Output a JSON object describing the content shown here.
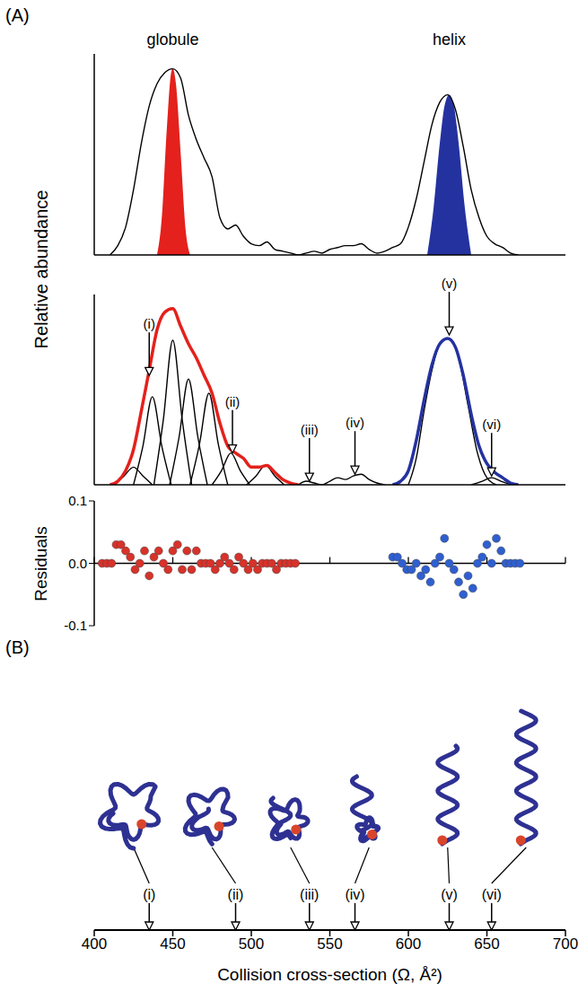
{
  "chart_data": [
    {
      "type": "line",
      "panel": "(A)",
      "ylabel": "Relative abundance",
      "grid": false,
      "tick_labels": false,
      "xlim": [
        400,
        700
      ],
      "xticks": [
        400,
        450,
        500,
        550,
        600,
        650,
        700
      ],
      "ylim": [
        0,
        1.08
      ],
      "annotations": [
        {
          "text": "globule",
          "x": 450
        },
        {
          "text": "helix",
          "x": 626
        }
      ],
      "series": [
        {
          "type": "area",
          "color": "#e4211c",
          "x": [
            440,
            443,
            446,
            449,
            450,
            452,
            455,
            458,
            461
          ],
          "values": [
            0,
            0.2,
            0.65,
            0.98,
            1.0,
            0.92,
            0.55,
            0.15,
            0
          ]
        },
        {
          "type": "area",
          "color": "#2432a0",
          "x": [
            612,
            616,
            620,
            623,
            626,
            629,
            632,
            636,
            640
          ],
          "values": [
            0,
            0.25,
            0.6,
            0.8,
            0.86,
            0.8,
            0.6,
            0.25,
            0
          ]
        },
        {
          "type": "line",
          "color": "#000000",
          "x": [
            410,
            415,
            420,
            425,
            430,
            435,
            440,
            445,
            450,
            455,
            460,
            465,
            470,
            475,
            480,
            485,
            490,
            495,
            500,
            505,
            510,
            515,
            520,
            525,
            530,
            535,
            540,
            545,
            550,
            555,
            560,
            565,
            570,
            575,
            580,
            585,
            590,
            595,
            600,
            605,
            610,
            615,
            620,
            625,
            630,
            635,
            640,
            645,
            650,
            655,
            660,
            665,
            670
          ],
          "values": [
            0,
            0.05,
            0.15,
            0.35,
            0.6,
            0.8,
            0.92,
            0.98,
            1.0,
            0.95,
            0.75,
            0.62,
            0.52,
            0.42,
            0.2,
            0.14,
            0.16,
            0.1,
            0.06,
            0.05,
            0.07,
            0.03,
            0.02,
            0.01,
            0,
            0.01,
            0.02,
            0.01,
            0.03,
            0.04,
            0.05,
            0.05,
            0.06,
            0.03,
            0.01,
            0.02,
            0.04,
            0.06,
            0.15,
            0.3,
            0.5,
            0.7,
            0.82,
            0.86,
            0.78,
            0.58,
            0.35,
            0.2,
            0.1,
            0.06,
            0.04,
            0.01,
            0
          ]
        }
      ]
    },
    {
      "type": "line",
      "grid": false,
      "tick_labels": false,
      "xlim": [
        400,
        700
      ],
      "xticks": [
        400,
        450,
        500,
        550,
        600,
        650,
        700
      ],
      "ylim": [
        0,
        1.08
      ],
      "annotations": [
        {
          "text": "(i)",
          "x": 435,
          "y": 0.62
        },
        {
          "text": "(ii)",
          "x": 488,
          "y": 0.18
        },
        {
          "text": "(iii)",
          "x": 537,
          "y": 0.02
        },
        {
          "text": "(iv)",
          "x": 566,
          "y": 0.06
        },
        {
          "text": "(v)",
          "x": 626,
          "y": 0.85
        },
        {
          "text": "(vi)",
          "x": 653,
          "y": 0.05
        }
      ],
      "series": [
        {
          "type": "line",
          "color": "#000000",
          "x": [
            413,
            419,
            425,
            431,
            437
          ],
          "values": [
            0,
            0.05,
            0.1,
            0.05,
            0
          ]
        },
        {
          "type": "line",
          "color": "#000000",
          "x": [
            425,
            431,
            437,
            443,
            449
          ],
          "values": [
            0,
            0.22,
            0.5,
            0.22,
            0
          ]
        },
        {
          "type": "line",
          "color": "#000000",
          "x": [
            438,
            444,
            450,
            456,
            462
          ],
          "values": [
            0,
            0.37,
            0.82,
            0.37,
            0
          ]
        },
        {
          "type": "line",
          "color": "#000000",
          "x": [
            448,
            454,
            460,
            466,
            472
          ],
          "values": [
            0,
            0.27,
            0.6,
            0.27,
            0
          ]
        },
        {
          "type": "line",
          "color": "#000000",
          "x": [
            461,
            467,
            473,
            479,
            485
          ],
          "values": [
            0,
            0.23,
            0.52,
            0.23,
            0
          ]
        },
        {
          "type": "line",
          "color": "#000000",
          "x": [
            475,
            481,
            487,
            493,
            499
          ],
          "values": [
            0,
            0.08,
            0.18,
            0.08,
            0
          ]
        },
        {
          "type": "line",
          "color": "#000000",
          "x": [
            497,
            503,
            509,
            515,
            521
          ],
          "values": [
            0,
            0.05,
            0.11,
            0.05,
            0
          ]
        },
        {
          "type": "line",
          "color": "#000000",
          "x": [
            530,
            535,
            540,
            545,
            550,
            555,
            560,
            565,
            570,
            575,
            580,
            585
          ],
          "values": [
            0,
            0.02,
            0.01,
            0,
            0.02,
            0.04,
            0.03,
            0.05,
            0.06,
            0.03,
            0.01,
            0
          ]
        },
        {
          "type": "line",
          "color": "#000000",
          "x": [
            600,
            605,
            610,
            615,
            620,
            626,
            632,
            638,
            644,
            650,
            656
          ],
          "values": [
            0,
            0.15,
            0.42,
            0.65,
            0.8,
            0.83,
            0.72,
            0.45,
            0.18,
            0.04,
            0
          ]
        },
        {
          "type": "line",
          "color": "#000000",
          "x": [
            640,
            647,
            653,
            659,
            666
          ],
          "values": [
            0,
            0.02,
            0.04,
            0.02,
            0
          ]
        },
        {
          "type": "line",
          "color": "#e4211c",
          "x": [
            410,
            415,
            420,
            425,
            430,
            435,
            440,
            445,
            450,
            455,
            460,
            465,
            470,
            475,
            480,
            485,
            490,
            495,
            500,
            505,
            510,
            515,
            520,
            525,
            530
          ],
          "values": [
            0,
            0.02,
            0.08,
            0.2,
            0.42,
            0.65,
            0.88,
            0.98,
            1.0,
            0.9,
            0.8,
            0.72,
            0.62,
            0.52,
            0.35,
            0.22,
            0.18,
            0.15,
            0.1,
            0.1,
            0.11,
            0.07,
            0.03,
            0.01,
            0
          ]
        },
        {
          "type": "line",
          "color": "#2432a0",
          "x": [
            590,
            595,
            600,
            605,
            610,
            615,
            620,
            625,
            630,
            635,
            640,
            645,
            650,
            655,
            660,
            665,
            670
          ],
          "values": [
            0,
            0.02,
            0.08,
            0.25,
            0.48,
            0.68,
            0.8,
            0.83,
            0.78,
            0.62,
            0.4,
            0.22,
            0.12,
            0.07,
            0.04,
            0.01,
            0
          ]
        }
      ]
    },
    {
      "type": "scatter",
      "ylabel": "Residuals",
      "grid": false,
      "tick_labels": "y",
      "xlim": [
        400,
        700
      ],
      "xticks": [
        400,
        450,
        500,
        550,
        600,
        650,
        700
      ],
      "ylim": [
        -0.1,
        0.1
      ],
      "yticks": [
        -0.1,
        {
          "value": 0,
          "label": "0.0"
        },
        0.1
      ],
      "series": [
        {
          "color": "#d8322a",
          "marker": "circle",
          "x": [
            405,
            408,
            411,
            414,
            417,
            420,
            423,
            426,
            429,
            432,
            435,
            438,
            441,
            444,
            447,
            450,
            453,
            456,
            459,
            462,
            465,
            468,
            471,
            474,
            477,
            480,
            483,
            486,
            489,
            492,
            495,
            498,
            501,
            504,
            507,
            510,
            513,
            516,
            519,
            522,
            525,
            528
          ],
          "values": [
            0,
            0,
            0,
            0.03,
            0.03,
            0.02,
            0.01,
            -0.01,
            0,
            0.02,
            -0.02,
            0.01,
            0.02,
            0,
            -0.01,
            0.02,
            0.03,
            -0.01,
            0.02,
            -0.01,
            0.02,
            0,
            0,
            0,
            -0.01,
            0,
            0.01,
            0,
            -0.01,
            0.01,
            0,
            -0.01,
            0,
            -0.01,
            0,
            0,
            0,
            -0.01,
            0,
            0,
            0,
            0
          ]
        },
        {
          "color": "#2f5fd0",
          "marker": "circle",
          "x": [
            590,
            593,
            596,
            599,
            602,
            605,
            608,
            611,
            614,
            617,
            620,
            623,
            626,
            629,
            632,
            635,
            638,
            641,
            644,
            647,
            650,
            653,
            656,
            659,
            662,
            665,
            668,
            671
          ],
          "values": [
            0.01,
            0.01,
            0,
            -0.01,
            -0.01,
            0,
            -0.02,
            -0.01,
            -0.03,
            0,
            0.01,
            0.04,
            0,
            -0.01,
            -0.03,
            -0.05,
            -0.02,
            -0.04,
            0,
            0.01,
            0.03,
            0,
            0.04,
            0.02,
            0,
            0,
            0,
            0
          ]
        }
      ]
    },
    {
      "type": "axis",
      "panel": "(B)",
      "xlabel": "Collision cross-section (Ω, Å²)",
      "grid": false,
      "tick_labels": "x",
      "xlim": [
        400,
        700
      ],
      "xticks": [
        400,
        450,
        500,
        550,
        600,
        650,
        700
      ],
      "annotations": [
        {
          "text": "(i)",
          "x": 435
        },
        {
          "text": "(ii)",
          "x": 490
        },
        {
          "text": "(iii)",
          "x": 537
        },
        {
          "text": "(iv)",
          "x": 566
        },
        {
          "text": "(v)",
          "x": 626
        },
        {
          "text": "(vi)",
          "x": 653
        }
      ]
    }
  ]
}
